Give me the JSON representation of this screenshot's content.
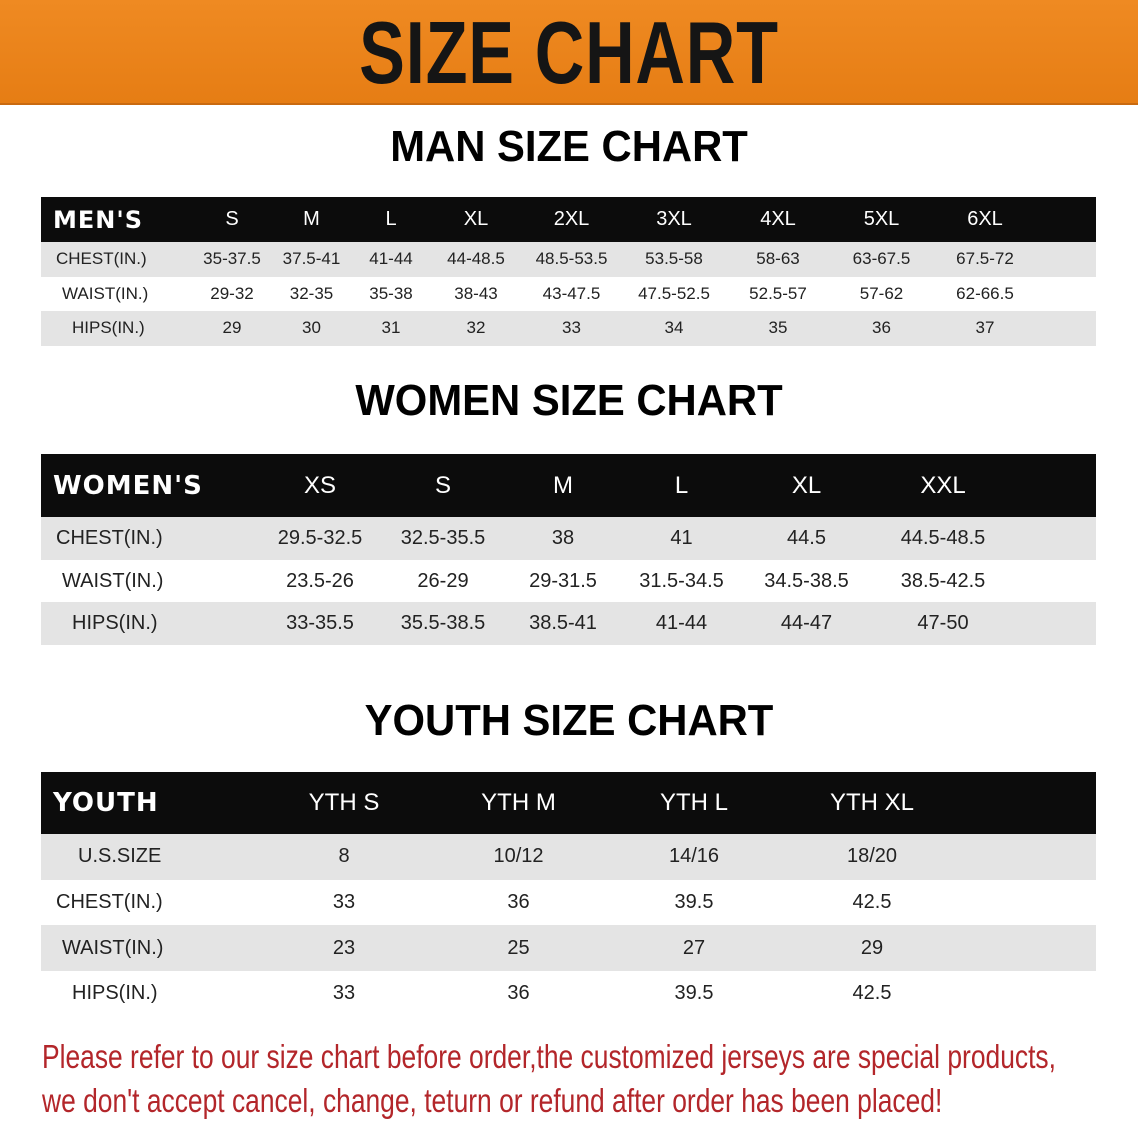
{
  "banner": {
    "title": "SIZE CHART",
    "color": "#ec8419"
  },
  "men": {
    "title": "MAN SIZE CHART",
    "header": [
      "MEN'S",
      "S",
      "M",
      "L",
      "XL",
      "2XL",
      "3XL",
      "4XL",
      "5XL",
      "6XL"
    ],
    "rows": [
      [
        "CHEST(IN.)",
        "35-37.5",
        "37.5-41",
        "41-44",
        "44-48.5",
        "48.5-53.5",
        "53.5-58",
        "58-63",
        "63-67.5",
        "67.5-72"
      ],
      [
        "WAIST(IN.)",
        "29-32",
        "32-35",
        "35-38",
        "38-43",
        "43-47.5",
        "47.5-52.5",
        "52.5-57",
        "57-62",
        "62-66.5"
      ],
      [
        "HIPS(IN.)",
        "29",
        "30",
        "31",
        "32",
        "33",
        "34",
        "35",
        "36",
        "37"
      ]
    ]
  },
  "women": {
    "title": "WOMEN SIZE CHART",
    "header": [
      "WOMEN'S",
      "XS",
      "S",
      "M",
      "L",
      "XL",
      "XXL"
    ],
    "rows": [
      [
        "CHEST(IN.)",
        "29.5-32.5",
        "32.5-35.5",
        "38",
        "41",
        "44.5",
        "44.5-48.5"
      ],
      [
        "WAIST(IN.)",
        "23.5-26",
        "26-29",
        "29-31.5",
        "31.5-34.5",
        "34.5-38.5",
        "38.5-42.5"
      ],
      [
        "HIPS(IN.)",
        "33-35.5",
        "35.5-38.5",
        "38.5-41",
        "41-44",
        "44-47",
        "47-50"
      ]
    ]
  },
  "youth": {
    "title": "YOUTH SIZE CHART",
    "header": [
      "YOUTH",
      "YTH S",
      "YTH M",
      "YTH L",
      "YTH XL"
    ],
    "rows": [
      [
        "U.S.SIZE",
        "8",
        "10/12",
        "14/16",
        "18/20"
      ],
      [
        "CHEST(IN.)",
        "33",
        "36",
        "39.5",
        "42.5"
      ],
      [
        "WAIST(IN.)",
        "23",
        "25",
        "27",
        "29"
      ],
      [
        "HIPS(IN.)",
        "33",
        "36",
        "39.5",
        "42.5"
      ]
    ]
  },
  "notice": {
    "line1": "Please refer to our size chart before order,the customized jerseys are special products,",
    "line2": "we don't accept cancel, change, teturn or refund after order has been placed!",
    "color": "#b3262a"
  }
}
